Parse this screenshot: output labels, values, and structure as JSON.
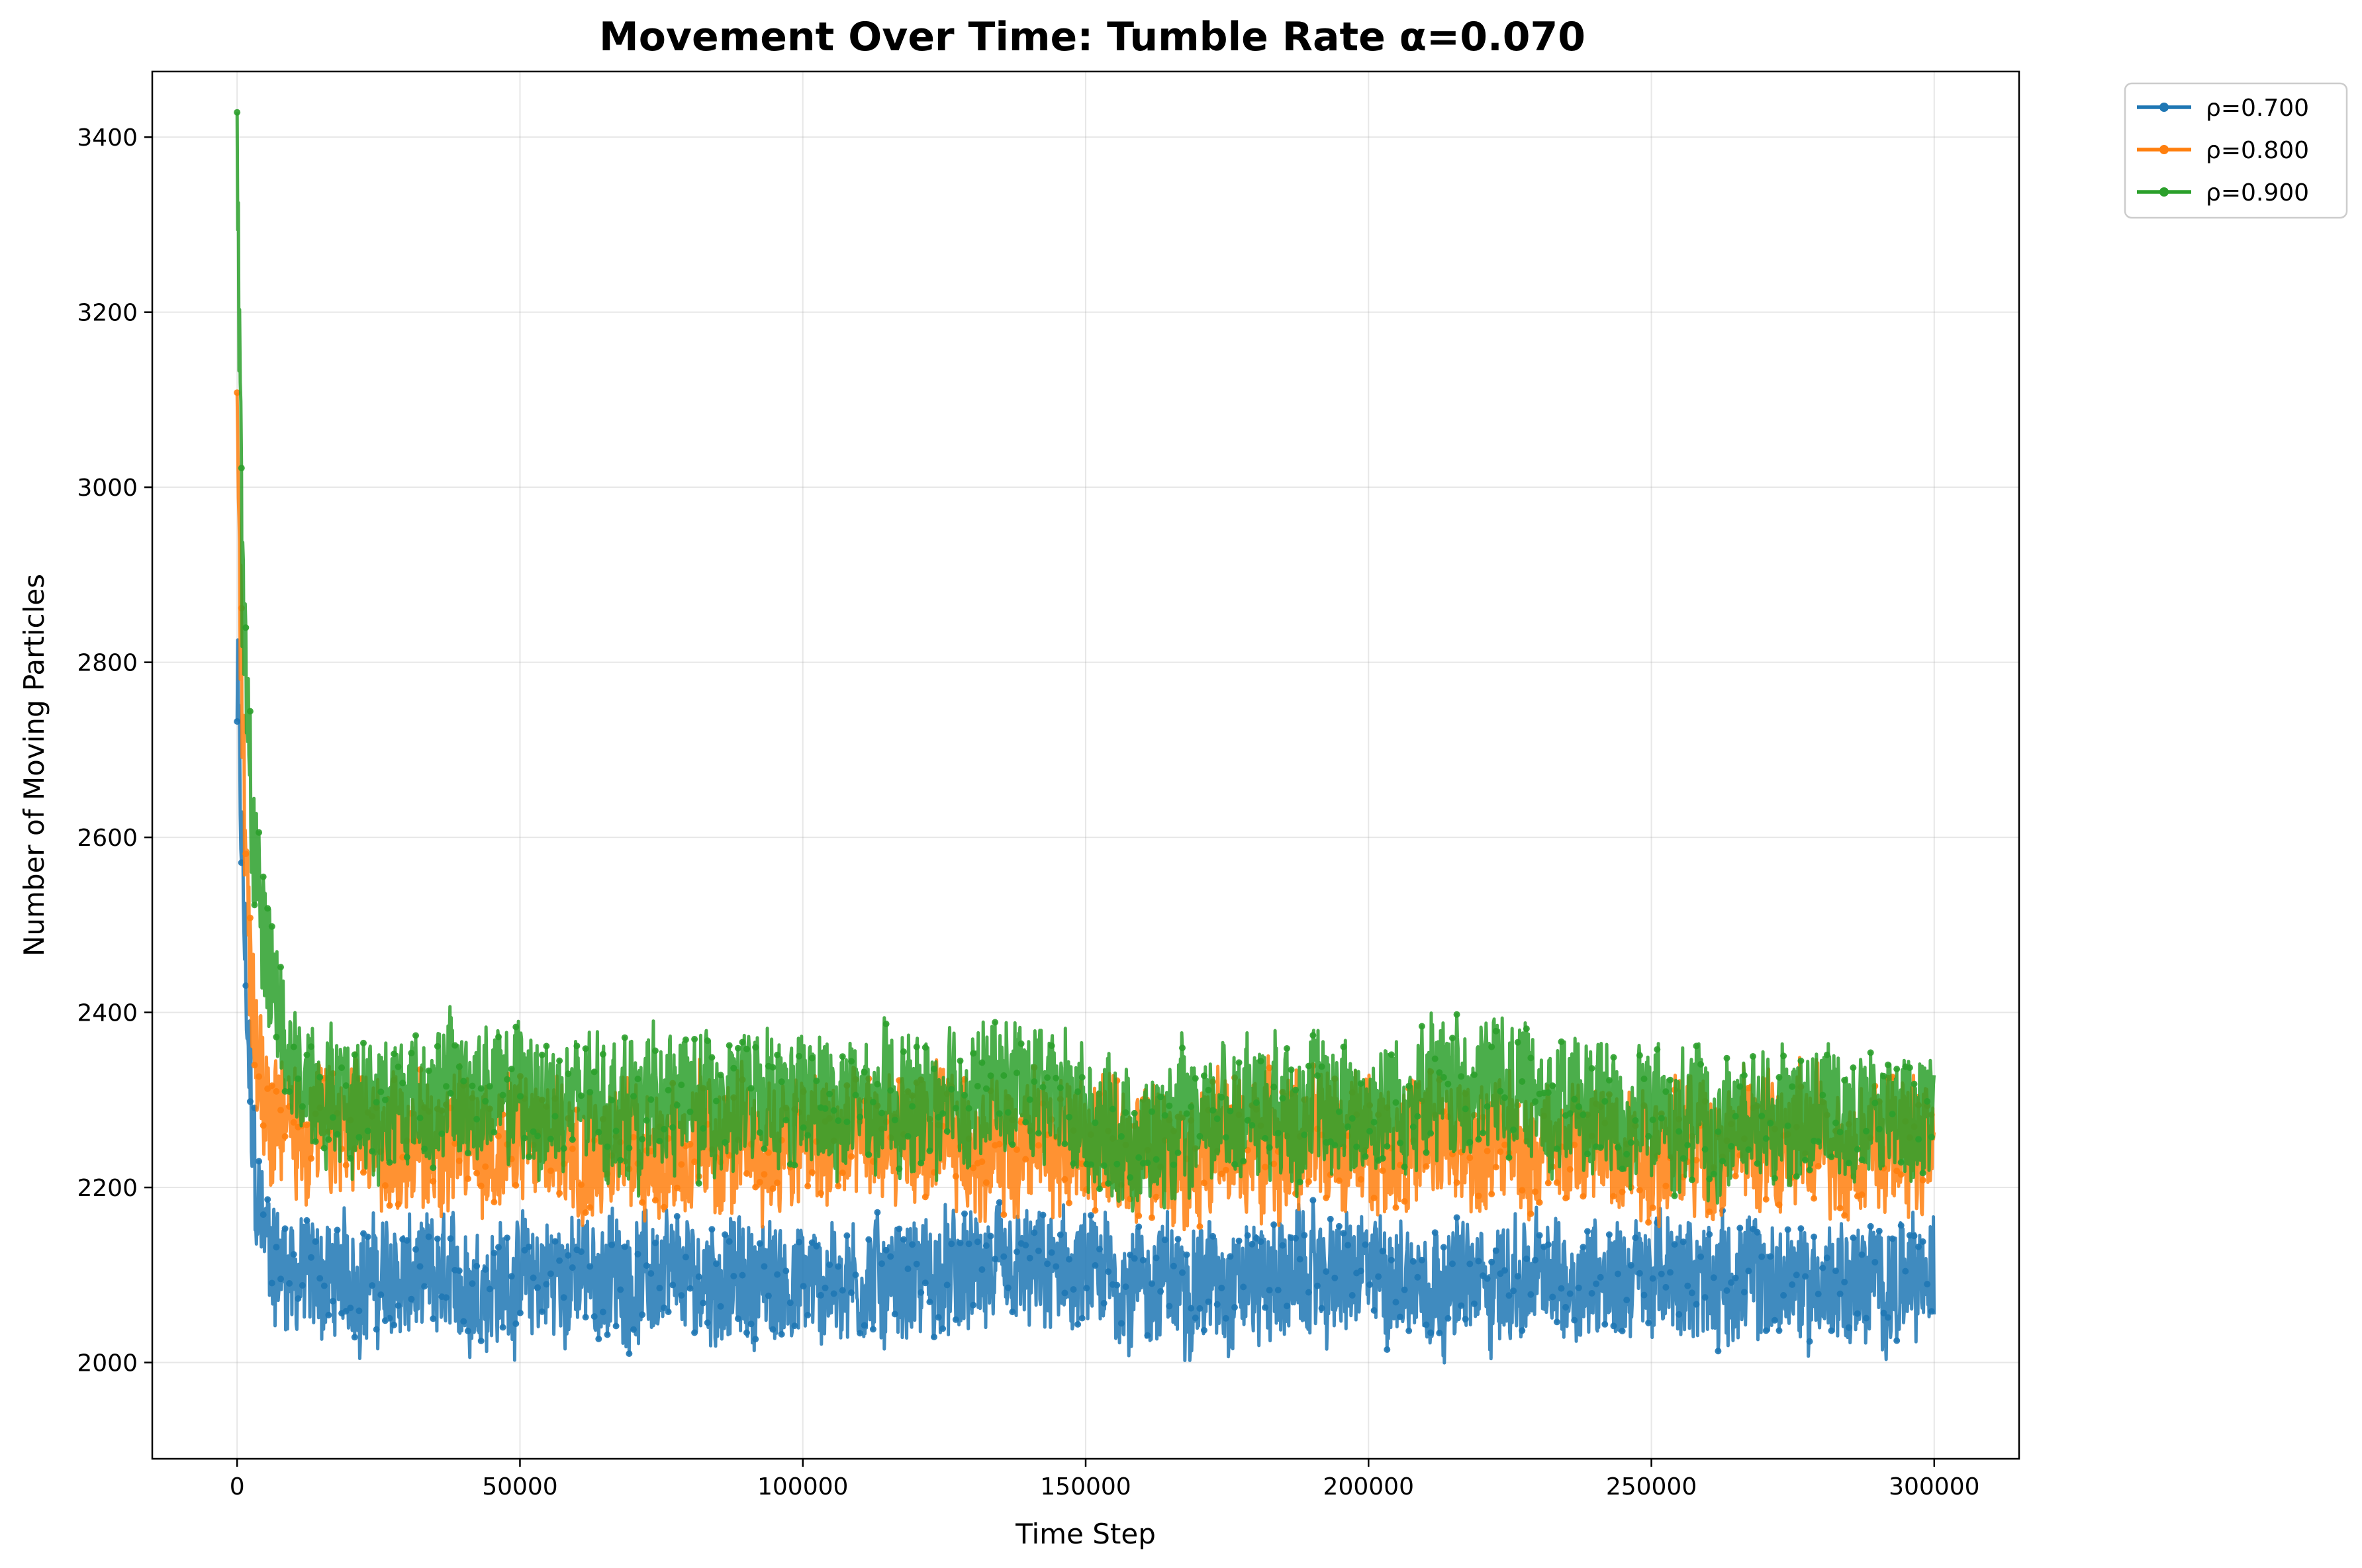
{
  "chart_data": {
    "type": "line",
    "title": "Movement Over Time: Tumble Rate α=0.070",
    "xlabel": "Time Step",
    "ylabel": "Number of Moving Particles",
    "xlim": [
      -15000,
      315000
    ],
    "ylim": [
      1890,
      3475
    ],
    "xticks": [
      0,
      50000,
      100000,
      150000,
      200000,
      250000,
      300000
    ],
    "yticks": [
      2000,
      2200,
      2400,
      2600,
      2800,
      3000,
      3200,
      3400
    ],
    "grid": true,
    "legend_position": "outside-top-right",
    "series": [
      {
        "name": "ρ=0.700",
        "color": "#1f77b4",
        "x": [
          0,
          500,
          1000,
          1500,
          2000,
          2500,
          3000,
          4000,
          5000,
          6000,
          8000,
          10000,
          20000,
          40000,
          60000,
          80000,
          100000,
          120000,
          140000,
          160000,
          180000,
          200000,
          220000,
          240000,
          260000,
          280000,
          300000
        ],
        "y": [
          2760,
          2650,
          2550,
          2440,
          2350,
          2280,
          2220,
          2170,
          2140,
          2120,
          2110,
          2100,
          2095,
          2090,
          2100,
          2095,
          2090,
          2095,
          2100,
          2090,
          2095,
          2100,
          2090,
          2100,
          2095,
          2090,
          2090
        ],
        "band": [
          110,
          110,
          110,
          100,
          100,
          95,
          95,
          90,
          90,
          90,
          85,
          85,
          85,
          85,
          85,
          85,
          85,
          85,
          85,
          85,
          85,
          85,
          85,
          85,
          85,
          85,
          85
        ]
      },
      {
        "name": "ρ=0.800",
        "color": "#ff7f0e",
        "x": [
          0,
          500,
          1000,
          1500,
          2000,
          2500,
          3000,
          4000,
          5000,
          6000,
          8000,
          10000,
          20000,
          40000,
          60000,
          80000,
          100000,
          120000,
          140000,
          160000,
          180000,
          200000,
          220000,
          240000,
          260000,
          280000,
          300000
        ],
        "y": [
          3070,
          2900,
          2750,
          2620,
          2520,
          2450,
          2400,
          2350,
          2320,
          2300,
          2280,
          2270,
          2260,
          2250,
          2255,
          2245,
          2250,
          2255,
          2250,
          2245,
          2250,
          2255,
          2250,
          2245,
          2250,
          2250,
          2250
        ],
        "band": [
          130,
          130,
          120,
          110,
          110,
          100,
          100,
          95,
          95,
          95,
          95,
          95,
          95,
          95,
          95,
          95,
          95,
          95,
          95,
          95,
          95,
          95,
          95,
          95,
          95,
          95,
          95
        ]
      },
      {
        "name": "ρ=0.900",
        "color": "#2ca02c",
        "x": [
          0,
          500,
          1000,
          1500,
          2000,
          2500,
          3000,
          4000,
          5000,
          6000,
          8000,
          10000,
          20000,
          40000,
          60000,
          80000,
          100000,
          120000,
          140000,
          160000,
          180000,
          200000,
          220000,
          240000,
          260000,
          280000,
          300000
        ],
        "y": [
          3400,
          3100,
          2870,
          2780,
          2720,
          2650,
          2600,
          2540,
          2480,
          2430,
          2380,
          2330,
          2300,
          2310,
          2290,
          2300,
          2295,
          2290,
          2320,
          2250,
          2300,
          2290,
          2320,
          2290,
          2270,
          2290,
          2280
        ],
        "band": [
          140,
          140,
          130,
          120,
          110,
          110,
          105,
          100,
          100,
          95,
          95,
          95,
          95,
          100,
          95,
          95,
          95,
          95,
          95,
          95,
          95,
          95,
          100,
          95,
          95,
          95,
          95
        ]
      }
    ]
  }
}
